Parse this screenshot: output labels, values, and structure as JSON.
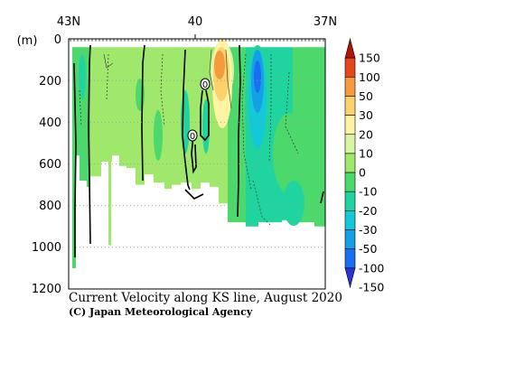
{
  "chart_data": {
    "type": "heatmap",
    "title": "Current Velocity along KS line, August 2020",
    "credit": "(C) Japan Meteorological Agency",
    "ylabel": "(m)",
    "x_ticks": [
      "43N",
      "40",
      "37N"
    ],
    "y_ticks": [
      "0",
      "200",
      "400",
      "600",
      "800",
      "1000",
      "1200"
    ],
    "ylim": [
      0,
      1200
    ],
    "x_direction": "43N (left) to 37N (right)",
    "y_direction": "depth increasing downward",
    "grid": "dotted horizontal at 200 m steps",
    "contour_labels": [
      "0",
      "0"
    ],
    "colorbar": {
      "levels": [
        "150",
        "100",
        "50",
        "30",
        "20",
        "10",
        "0",
        "-10",
        "-20",
        "-30",
        "-50",
        "-100",
        "-150"
      ],
      "colors": [
        "#b01505",
        "#e5461c",
        "#f49a3f",
        "#fbd36a",
        "#fff3a4",
        "#d8f5a5",
        "#9fe86c",
        "#4cd86a",
        "#20d4a0",
        "#14c8d8",
        "#14a0e6",
        "#1a6ef0",
        "#2a32d8"
      ]
    }
  }
}
